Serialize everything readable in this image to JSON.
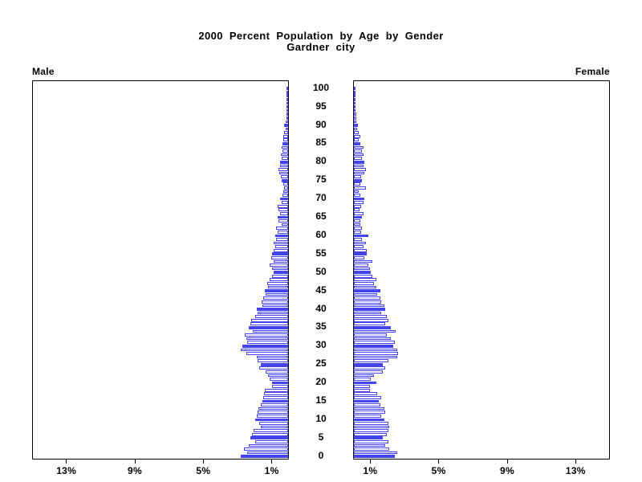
{
  "title": {
    "line1": "2000 Percent Population by Age by Gender",
    "line2": "Gardner city"
  },
  "panels": {
    "male_label": "Male",
    "female_label": "Female"
  },
  "colors": {
    "bar_blue": "#4444ee",
    "axis_black": "#000000",
    "background": "#ffffff"
  },
  "chart_data": {
    "type": "bar",
    "subtype": "population-pyramid",
    "title": "2000 Percent Population by Age by Gender",
    "subtitle": "Gardner city",
    "unit": "percent of total population",
    "age_min": 0,
    "age_max": 100,
    "age_tick_interval": 5,
    "age_ticks": [
      0,
      5,
      10,
      15,
      20,
      25,
      30,
      35,
      40,
      45,
      50,
      55,
      60,
      65,
      70,
      75,
      80,
      85,
      90,
      95,
      100
    ],
    "x_axis": {
      "ticks": [
        1,
        5,
        9,
        13
      ],
      "tick_labels": [
        "1%",
        "5%",
        "9%",
        "13%"
      ],
      "max_percent": 15,
      "note": "male axis increases right-to-left, female axis increases left-to-right"
    },
    "highlight_rule": "ages divisible by 5 are solid filled blue bars; all other ages are white bars with blue outline",
    "legend_position": "none",
    "grid": false,
    "series": [
      {
        "name": "Male",
        "side": "left",
        "values": [
          2.76,
          2.38,
          2.58,
          2.3,
          1.92,
          2.22,
          2.12,
          2.02,
          1.6,
          1.69,
          1.92,
          1.84,
          1.76,
          1.72,
          1.6,
          1.5,
          1.46,
          1.41,
          1.35,
          0.92,
          0.95,
          1.07,
          1.15,
          1.3,
          1.69,
          1.6,
          1.76,
          1.84,
          2.45,
          2.76,
          2.68,
          2.38,
          2.45,
          2.53,
          2.07,
          2.3,
          2.22,
          2.15,
          1.92,
          1.76,
          1.84,
          1.5,
          1.53,
          1.46,
          1.3,
          1.38,
          1.15,
          1.23,
          1.07,
          0.92,
          0.85,
          0.92,
          1.08,
          0.85,
          1.0,
          0.92,
          0.85,
          0.77,
          0.85,
          0.7,
          0.77,
          0.6,
          0.7,
          0.38,
          0.55,
          0.6,
          0.46,
          0.55,
          0.6,
          0.38,
          0.46,
          0.32,
          0.28,
          0.23,
          0.3,
          0.37,
          0.42,
          0.5,
          0.55,
          0.46,
          0.46,
          0.37,
          0.41,
          0.32,
          0.37,
          0.32,
          0.28,
          0.28,
          0.23,
          0.14,
          0.23,
          0.14,
          0.05,
          0.09,
          0.05,
          0.09,
          0.02,
          0.03,
          0.02,
          0.01,
          0.02
        ]
      },
      {
        "name": "Female",
        "side": "right",
        "values": [
          2.4,
          2.53,
          2.07,
          1.84,
          2.0,
          1.7,
          1.92,
          2.0,
          2.07,
          2.0,
          1.76,
          1.6,
          1.84,
          1.76,
          1.53,
          1.47,
          1.6,
          1.38,
          0.92,
          0.92,
          1.3,
          1.0,
          1.15,
          1.7,
          1.84,
          1.7,
          2.0,
          2.53,
          2.6,
          2.53,
          2.3,
          2.38,
          2.15,
          1.92,
          2.45,
          2.15,
          1.84,
          2.0,
          1.92,
          1.6,
          1.84,
          1.76,
          1.6,
          1.53,
          1.38,
          1.53,
          1.3,
          1.15,
          1.3,
          1.07,
          1.0,
          0.92,
          0.85,
          1.07,
          0.6,
          0.77,
          0.77,
          0.55,
          0.7,
          0.46,
          0.85,
          0.43,
          0.46,
          0.38,
          0.38,
          0.46,
          0.55,
          0.32,
          0.43,
          0.55,
          0.6,
          0.38,
          0.28,
          0.7,
          0.38,
          0.46,
          0.43,
          0.6,
          0.7,
          0.55,
          0.6,
          0.46,
          0.55,
          0.46,
          0.55,
          0.38,
          0.3,
          0.38,
          0.3,
          0.18,
          0.23,
          0.14,
          0.14,
          0.14,
          0.06,
          0.06,
          0.03,
          0.02,
          0.02,
          0.01,
          0.05
        ]
      }
    ]
  }
}
